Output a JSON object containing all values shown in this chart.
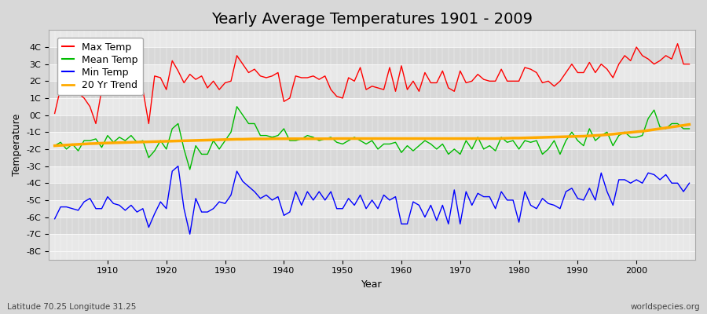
{
  "title": "Yearly Average Temperatures 1901 - 2009",
  "xlabel": "Year",
  "ylabel": "Temperature",
  "footnote_left": "Latitude 70.25 Longitude 31.25",
  "footnote_right": "worldspecies.org",
  "years": [
    1901,
    1902,
    1903,
    1904,
    1905,
    1906,
    1907,
    1908,
    1909,
    1910,
    1911,
    1912,
    1913,
    1914,
    1915,
    1916,
    1917,
    1918,
    1919,
    1920,
    1921,
    1922,
    1923,
    1924,
    1925,
    1926,
    1927,
    1928,
    1929,
    1930,
    1931,
    1932,
    1933,
    1934,
    1935,
    1936,
    1937,
    1938,
    1939,
    1940,
    1941,
    1942,
    1943,
    1944,
    1945,
    1946,
    1947,
    1948,
    1949,
    1950,
    1951,
    1952,
    1953,
    1954,
    1955,
    1956,
    1957,
    1958,
    1959,
    1960,
    1961,
    1962,
    1963,
    1964,
    1965,
    1966,
    1967,
    1968,
    1969,
    1970,
    1971,
    1972,
    1973,
    1974,
    1975,
    1976,
    1977,
    1978,
    1979,
    1980,
    1981,
    1982,
    1983,
    1984,
    1985,
    1986,
    1987,
    1988,
    1989,
    1990,
    1991,
    1992,
    1993,
    1994,
    1995,
    1996,
    1997,
    1998,
    1999,
    2000,
    2001,
    2002,
    2003,
    2004,
    2005,
    2006,
    2007,
    2008,
    2009
  ],
  "max_temp": [
    0.1,
    1.6,
    1.7,
    1.6,
    1.3,
    1.0,
    0.5,
    -0.5,
    1.5,
    1.5,
    1.6,
    2.5,
    1.5,
    1.9,
    1.5,
    1.5,
    -0.5,
    2.3,
    2.2,
    1.5,
    3.2,
    2.6,
    1.9,
    2.4,
    2.1,
    2.3,
    1.6,
    2.0,
    1.5,
    1.9,
    2.0,
    3.5,
    3.0,
    2.5,
    2.7,
    2.3,
    2.2,
    2.3,
    2.5,
    0.8,
    1.0,
    2.3,
    2.2,
    2.2,
    2.3,
    2.1,
    2.3,
    1.5,
    1.1,
    1.0,
    2.2,
    2.0,
    2.8,
    1.5,
    1.7,
    1.6,
    1.5,
    2.8,
    1.4,
    2.9,
    1.5,
    2.0,
    1.4,
    2.5,
    1.9,
    1.9,
    2.6,
    1.6,
    1.4,
    2.6,
    1.9,
    2.0,
    2.4,
    2.1,
    2.0,
    2.0,
    2.7,
    2.0,
    2.0,
    2.0,
    2.8,
    2.7,
    2.5,
    1.9,
    2.0,
    1.7,
    2.0,
    2.5,
    3.0,
    2.5,
    2.5,
    3.1,
    2.5,
    3.0,
    2.7,
    2.2,
    3.0,
    3.5,
    3.2,
    4.0,
    3.5,
    3.3,
    3.0,
    3.2,
    3.5,
    3.3,
    4.2,
    3.0,
    3.0
  ],
  "mean_temp": [
    -1.8,
    -1.6,
    -2.0,
    -1.7,
    -2.1,
    -1.5,
    -1.5,
    -1.4,
    -1.9,
    -1.2,
    -1.6,
    -1.3,
    -1.5,
    -1.2,
    -1.6,
    -1.5,
    -2.5,
    -2.1,
    -1.5,
    -2.0,
    -0.8,
    -0.5,
    -2.0,
    -3.2,
    -1.8,
    -2.3,
    -2.3,
    -1.5,
    -2.0,
    -1.5,
    -1.0,
    0.5,
    0.0,
    -0.5,
    -0.5,
    -1.2,
    -1.2,
    -1.3,
    -1.2,
    -0.8,
    -1.5,
    -1.5,
    -1.4,
    -1.2,
    -1.3,
    -1.5,
    -1.4,
    -1.3,
    -1.6,
    -1.7,
    -1.5,
    -1.3,
    -1.5,
    -1.7,
    -1.5,
    -2.0,
    -1.7,
    -1.7,
    -1.6,
    -2.2,
    -1.8,
    -2.1,
    -1.8,
    -1.5,
    -1.7,
    -2.0,
    -1.7,
    -2.3,
    -2.0,
    -2.3,
    -1.5,
    -2.0,
    -1.3,
    -2.0,
    -1.8,
    -2.1,
    -1.3,
    -1.6,
    -1.5,
    -2.0,
    -1.5,
    -1.6,
    -1.5,
    -2.3,
    -2.0,
    -1.5,
    -2.3,
    -1.5,
    -1.0,
    -1.5,
    -1.8,
    -0.8,
    -1.5,
    -1.2,
    -1.0,
    -1.8,
    -1.2,
    -1.0,
    -1.3,
    -1.3,
    -1.2,
    -0.2,
    0.3,
    -0.7,
    -0.8,
    -0.5,
    -0.5,
    -0.8,
    -0.8
  ],
  "min_temp": [
    -6.1,
    -5.4,
    -5.4,
    -5.5,
    -5.6,
    -5.1,
    -4.9,
    -5.5,
    -5.5,
    -4.8,
    -5.2,
    -5.3,
    -5.6,
    -5.3,
    -5.7,
    -5.5,
    -6.6,
    -5.8,
    -5.1,
    -5.5,
    -3.3,
    -3.0,
    -5.5,
    -7.0,
    -4.9,
    -5.7,
    -5.7,
    -5.5,
    -5.1,
    -5.2,
    -4.7,
    -3.3,
    -3.9,
    -4.2,
    -4.5,
    -4.9,
    -4.7,
    -5.0,
    -4.8,
    -5.9,
    -5.7,
    -4.5,
    -5.3,
    -4.5,
    -5.0,
    -4.5,
    -5.0,
    -4.5,
    -5.5,
    -5.5,
    -4.9,
    -5.3,
    -4.7,
    -5.5,
    -5.0,
    -5.5,
    -4.7,
    -5.0,
    -4.8,
    -6.4,
    -6.4,
    -5.1,
    -5.3,
    -6.0,
    -5.3,
    -6.2,
    -5.3,
    -6.4,
    -4.4,
    -6.4,
    -4.5,
    -5.3,
    -4.6,
    -4.8,
    -4.8,
    -5.5,
    -4.5,
    -5.0,
    -5.0,
    -6.3,
    -4.5,
    -5.3,
    -5.5,
    -4.9,
    -5.2,
    -5.3,
    -5.5,
    -4.5,
    -4.3,
    -4.9,
    -5.0,
    -4.3,
    -5.0,
    -3.4,
    -4.5,
    -5.3,
    -3.8,
    -3.8,
    -4.0,
    -3.8,
    -4.0,
    -3.4,
    -3.5,
    -3.8,
    -3.5,
    -4.0,
    -4.0,
    -4.5,
    -4.0
  ],
  "trend_y": [
    -1.8,
    -1.78,
    -1.76,
    -1.74,
    -1.72,
    -1.7,
    -1.68,
    -1.67,
    -1.65,
    -1.64,
    -1.63,
    -1.62,
    -1.61,
    -1.6,
    -1.59,
    -1.58,
    -1.57,
    -1.56,
    -1.55,
    -1.54,
    -1.53,
    -1.52,
    -1.51,
    -1.5,
    -1.49,
    -1.48,
    -1.47,
    -1.46,
    -1.45,
    -1.44,
    -1.43,
    -1.42,
    -1.42,
    -1.41,
    -1.4,
    -1.4,
    -1.4,
    -1.39,
    -1.39,
    -1.39,
    -1.39,
    -1.39,
    -1.39,
    -1.39,
    -1.39,
    -1.39,
    -1.39,
    -1.39,
    -1.38,
    -1.38,
    -1.38,
    -1.38,
    -1.38,
    -1.38,
    -1.38,
    -1.38,
    -1.38,
    -1.38,
    -1.38,
    -1.38,
    -1.38,
    -1.38,
    -1.38,
    -1.38,
    -1.38,
    -1.38,
    -1.38,
    -1.38,
    -1.38,
    -1.38,
    -1.38,
    -1.38,
    -1.38,
    -1.38,
    -1.38,
    -1.38,
    -1.37,
    -1.36,
    -1.35,
    -1.35,
    -1.34,
    -1.33,
    -1.32,
    -1.31,
    -1.3,
    -1.29,
    -1.28,
    -1.27,
    -1.26,
    -1.25,
    -1.24,
    -1.22,
    -1.2,
    -1.18,
    -1.15,
    -1.12,
    -1.08,
    -1.05,
    -1.02,
    -0.98,
    -0.95,
    -0.9,
    -0.85,
    -0.8,
    -0.75,
    -0.7,
    -0.65,
    -0.6,
    -0.55
  ],
  "max_color": "#ff0000",
  "mean_color": "#00bb00",
  "min_color": "#0000ff",
  "trend_color": "#ffaa00",
  "bg_color": "#d8d8d8",
  "band_colors": [
    "#e8e8e8",
    "#d8d8d8"
  ],
  "ylim": [
    -8.5,
    5.0
  ],
  "ytick_vals": [
    -8,
    -7,
    -6,
    -5,
    -4,
    -3,
    -2,
    -1,
    0,
    1,
    2,
    3,
    4
  ],
  "ytick_labels": [
    "-8C",
    "-7C",
    "-6C",
    "-5C",
    "-4C",
    "-3C",
    "-2C",
    "-1C",
    "0C",
    "1C",
    "2C",
    "3C",
    "4C"
  ],
  "xlim": [
    1900,
    2010
  ],
  "xticks": [
    1910,
    1920,
    1930,
    1940,
    1950,
    1960,
    1970,
    1980,
    1990,
    2000
  ],
  "legend_labels": [
    "Max Temp",
    "Mean Temp",
    "Min Temp",
    "20 Yr Trend"
  ],
  "title_fontsize": 14,
  "axis_label_fontsize": 9,
  "tick_fontsize": 8,
  "legend_fontsize": 9
}
